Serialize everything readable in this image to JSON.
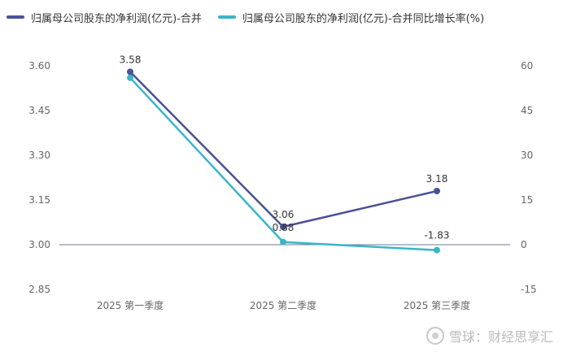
{
  "chart_data": {
    "type": "line",
    "categories": [
      "2025 第一季度",
      "2025 第二季度",
      "2025 第三季度"
    ],
    "series": [
      {
        "name": "归属母公司股东的净利润(亿元)-合并",
        "values": [
          3.58,
          3.06,
          3.18
        ],
        "axis": "left",
        "color": "#4a5296",
        "labels": [
          "3.58",
          "3.06",
          "3.18"
        ]
      },
      {
        "name": "归属母公司股东的净利润(亿元)-合并同比增长率(%)",
        "values": [
          56,
          0.88,
          -1.83
        ],
        "axis": "right",
        "color": "#3bb5c7",
        "labels": [
          "",
          "0.88",
          "-1.83"
        ]
      }
    ],
    "y_left": {
      "min": 2.85,
      "max": 3.6,
      "ticks": [
        "3.60",
        "3.45",
        "3.30",
        "3.15",
        "3.00",
        "2.85"
      ]
    },
    "y_right": {
      "min": -15,
      "max": 60,
      "ticks": [
        "60",
        "45",
        "30",
        "15",
        "0",
        "-15"
      ]
    },
    "grid": false,
    "legend_position": "top-left"
  },
  "watermark": {
    "text": "雪球：财经思享汇"
  }
}
